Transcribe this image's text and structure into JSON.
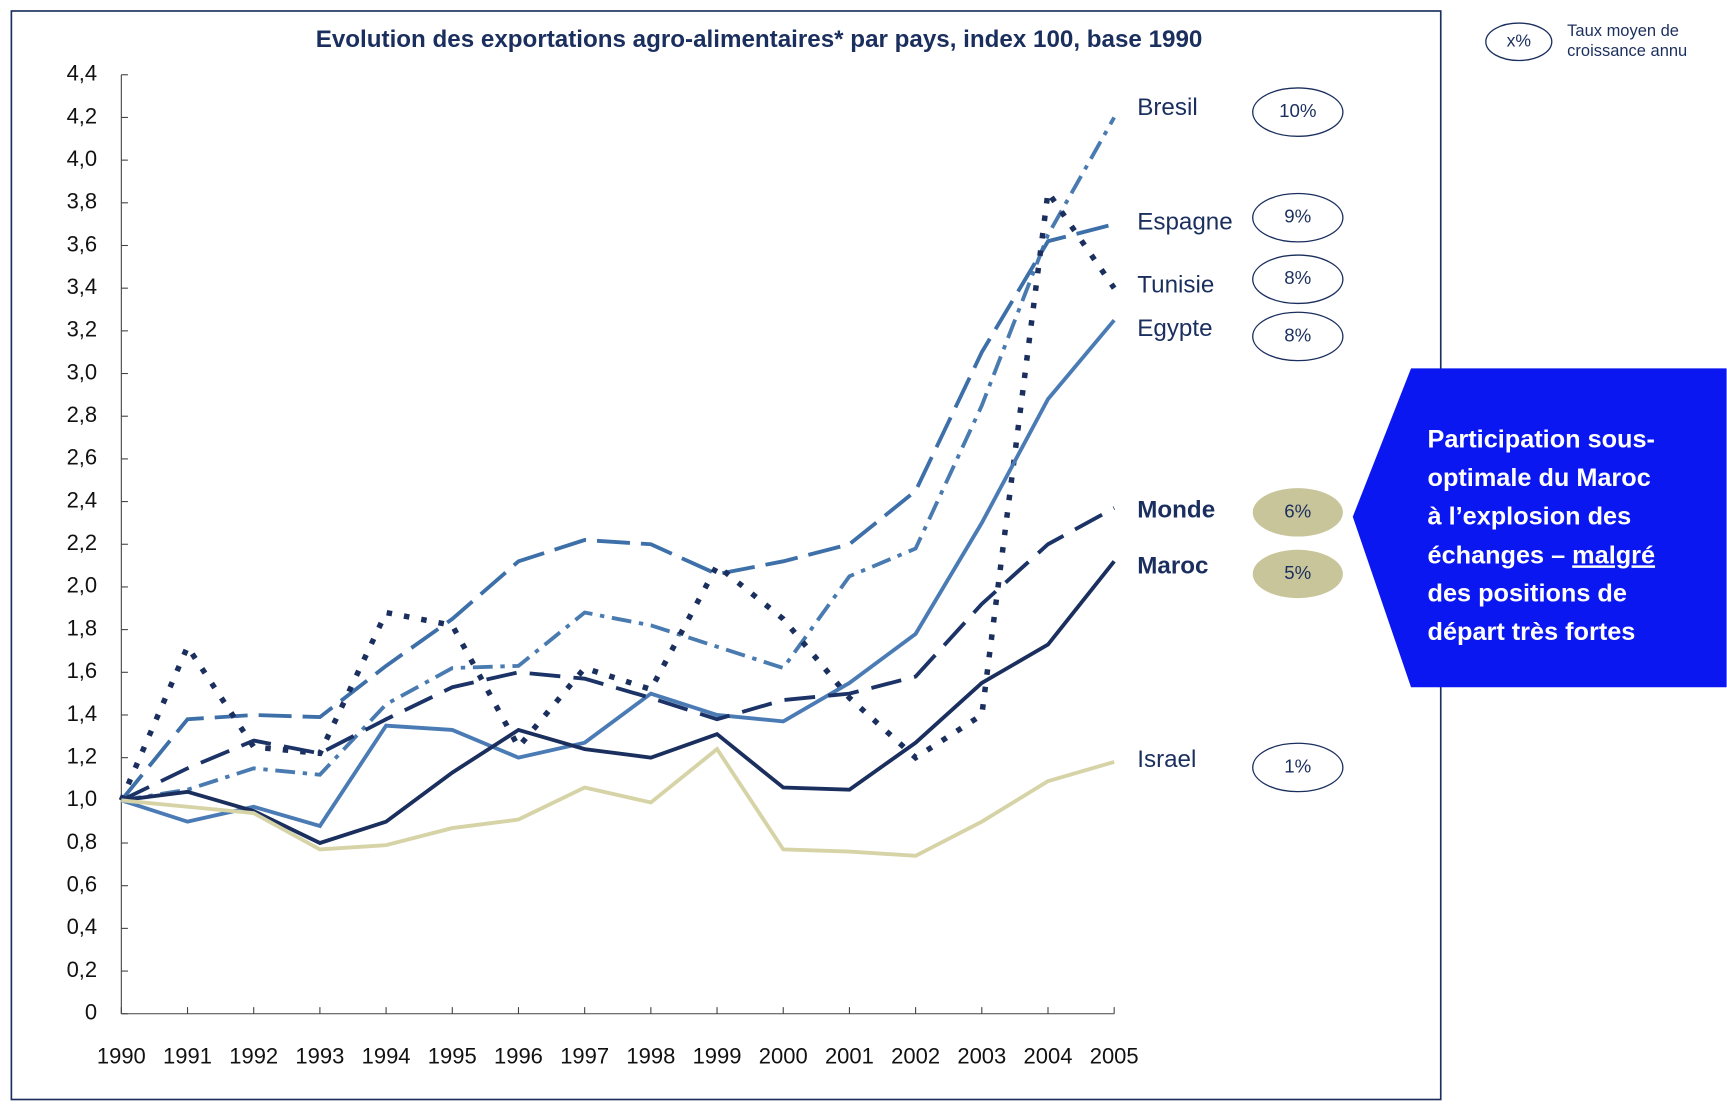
{
  "chart_data": {
    "type": "line",
    "title": "Evolution des exportations agro-alimentaires* par pays, index 100, base 1990",
    "categories": [
      "1990",
      "1991",
      "1992",
      "1993",
      "1994",
      "1995",
      "1996",
      "1997",
      "1998",
      "1999",
      "2000",
      "2001",
      "2002",
      "2003",
      "2004",
      "2005"
    ],
    "ylim": [
      0,
      4.4
    ],
    "yticks": [
      0,
      {
        "value": 0.2,
        "label": "0,2"
      },
      {
        "value": 0.4,
        "label": "0,4"
      },
      {
        "value": 0.6,
        "label": "0,6"
      },
      {
        "value": 0.8,
        "label": "0,8"
      },
      {
        "value": 1.0,
        "label": "1,0"
      },
      {
        "value": 1.2,
        "label": "1,2"
      },
      {
        "value": 1.4,
        "label": "1,4"
      },
      {
        "value": 1.6,
        "label": "1,6"
      },
      {
        "value": 1.8,
        "label": "1,8"
      },
      {
        "value": 2.0,
        "label": "2,0"
      },
      {
        "value": 2.2,
        "label": "2,2"
      },
      {
        "value": 2.4,
        "label": "2,4"
      },
      {
        "value": 2.6,
        "label": "2,6"
      },
      {
        "value": 2.8,
        "label": "2,8"
      },
      {
        "value": 3.0,
        "label": "3,0"
      },
      {
        "value": 3.2,
        "label": "3,2"
      },
      {
        "value": 3.4,
        "label": "3,4"
      },
      {
        "value": 3.6,
        "label": "3,6"
      },
      {
        "value": 3.8,
        "label": "3,8"
      },
      {
        "value": 4.0,
        "label": "4,0"
      },
      {
        "value": 4.2,
        "label": "4,2"
      },
      {
        "value": 4.4,
        "label": "4,4"
      }
    ],
    "grid": false,
    "series": [
      {
        "name": "Bresil",
        "growth": "10%",
        "color": "#4a7bb0",
        "dash": "18,7,4,7",
        "values": [
          1.0,
          1.05,
          1.15,
          1.12,
          1.45,
          1.62,
          1.63,
          1.88,
          1.82,
          1.72,
          1.62,
          2.05,
          2.18,
          2.85,
          3.65,
          4.2
        ]
      },
      {
        "name": "Espagne",
        "growth": "9%",
        "color": "#3d6fa8",
        "dash": "30,10",
        "values": [
          1.0,
          1.38,
          1.4,
          1.39,
          1.63,
          1.85,
          2.12,
          2.22,
          2.2,
          2.06,
          2.12,
          2.2,
          2.45,
          3.1,
          3.62,
          3.7
        ]
      },
      {
        "name": "Tunisie",
        "growth": "8%",
        "color": "#1b2f5e",
        "dash": "5,11",
        "values": [
          1.0,
          1.72,
          1.25,
          1.22,
          1.88,
          1.82,
          1.25,
          1.62,
          1.52,
          2.1,
          1.85,
          1.48,
          1.2,
          1.4,
          3.85,
          3.4
        ]
      },
      {
        "name": "Egypte",
        "growth": "8%",
        "color": "#4a7bb5",
        "dash": "",
        "values": [
          1.0,
          0.9,
          0.97,
          0.88,
          1.35,
          1.33,
          1.2,
          1.27,
          1.5,
          1.4,
          1.37,
          1.55,
          1.78,
          2.3,
          2.88,
          3.25
        ]
      },
      {
        "name": "Monde",
        "growth": "6%",
        "color": "#1b3366",
        "dash": "28,12",
        "values": [
          1.0,
          1.15,
          1.28,
          1.22,
          1.38,
          1.53,
          1.6,
          1.57,
          1.48,
          1.38,
          1.47,
          1.5,
          1.58,
          1.92,
          2.2,
          2.37
        ]
      },
      {
        "name": "Maroc",
        "growth": "5%",
        "color": "#1b2f5e",
        "dash": "",
        "values": [
          1.0,
          1.04,
          0.95,
          0.8,
          0.9,
          1.13,
          1.33,
          1.24,
          1.2,
          1.31,
          1.06,
          1.05,
          1.27,
          1.55,
          1.73,
          2.12
        ]
      },
      {
        "name": "Israel",
        "growth": "1%",
        "color": "#d6d3a6",
        "dash": "",
        "values": [
          1.0,
          0.97,
          0.94,
          0.77,
          0.79,
          0.87,
          0.91,
          1.06,
          0.99,
          1.24,
          0.77,
          0.76,
          0.74,
          0.9,
          1.09,
          1.18
        ]
      }
    ],
    "legend": {
      "symbol": "x%",
      "text": [
        "Taux moyen de",
        "croissance annu"
      ]
    },
    "callout": {
      "lines": [
        "Participation sous-",
        "optimale du Maroc",
        "à l’explosion des",
        [
          "échanges – ",
          "malgré"
        ],
        "des positions de",
        "départ très fortes"
      ]
    }
  }
}
